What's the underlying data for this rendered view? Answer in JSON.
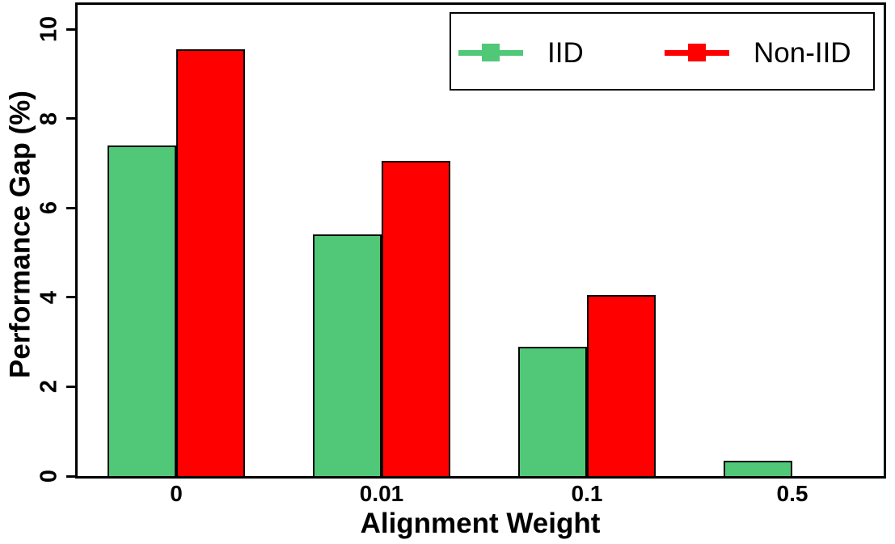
{
  "chart_data": {
    "type": "bar",
    "title": "",
    "xlabel": "Alignment Weight",
    "ylabel": "Performance Gap (%)",
    "categories": [
      "0",
      "0.01",
      "0.1",
      "0.5"
    ],
    "series": [
      {
        "name": "IID",
        "color": "#50C878",
        "values": [
          7.4,
          5.4,
          2.9,
          0.35
        ]
      },
      {
        "name": "Non-IID",
        "color": "#FF0000",
        "values": [
          9.55,
          7.05,
          4.05,
          0
        ]
      }
    ],
    "ylim": [
      0,
      10
    ],
    "yticks": [
      0,
      2,
      4,
      6,
      8,
      10
    ],
    "grid": false,
    "legend_position": "top-right",
    "bar_edge_color": "#000000",
    "axis_color": "#000000"
  }
}
